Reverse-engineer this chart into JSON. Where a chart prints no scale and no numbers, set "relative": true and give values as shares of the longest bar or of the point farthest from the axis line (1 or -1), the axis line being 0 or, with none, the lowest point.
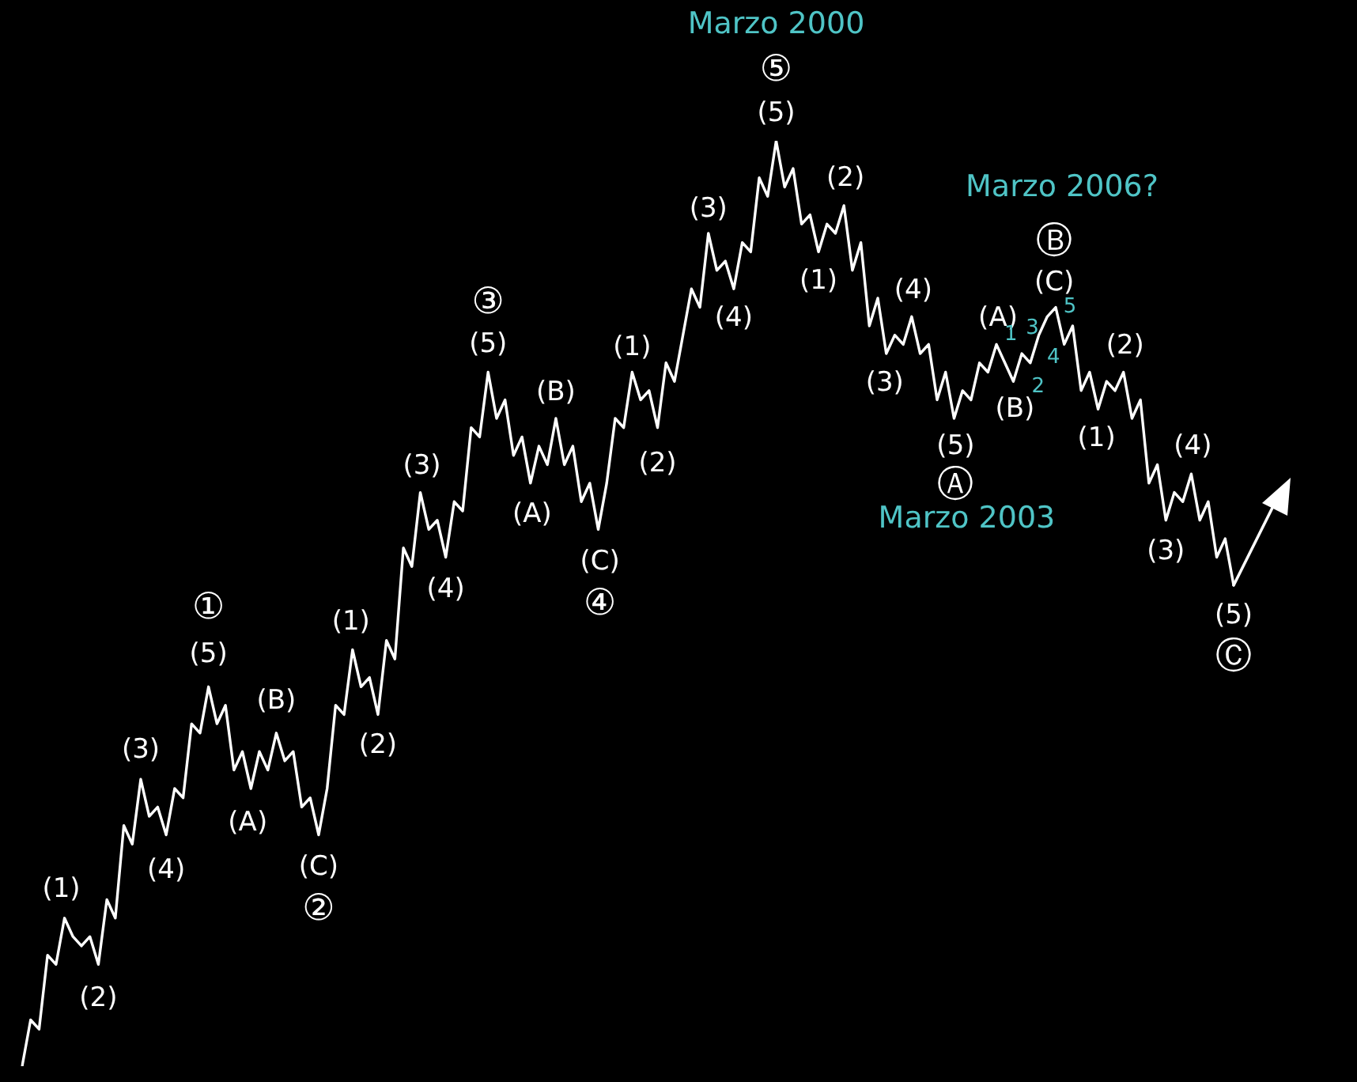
{
  "chart_data": {
    "type": "line",
    "relative": true,
    "tick_labels": false,
    "categories": [
      null,
      null,
      null,
      null,
      null,
      null,
      null,
      null,
      null,
      null,
      null,
      null,
      null,
      null,
      null,
      null,
      null,
      null,
      null,
      null,
      null,
      null,
      null,
      null,
      null,
      null,
      null,
      null,
      null,
      null,
      null,
      null,
      null,
      null,
      null,
      null,
      null,
      null,
      null,
      null,
      null,
      null,
      null,
      null,
      null,
      null,
      null,
      null,
      null,
      null,
      null,
      null,
      null,
      null,
      null,
      null,
      null,
      null,
      null,
      null,
      null,
      null,
      null,
      null,
      null,
      null,
      null,
      null,
      null,
      null,
      null,
      null,
      null,
      null,
      null,
      null,
      null,
      null,
      null,
      null,
      null,
      null,
      null,
      null,
      null,
      null,
      null,
      null,
      null,
      null,
      null,
      null,
      null,
      null,
      null,
      null,
      null,
      null,
      null,
      null,
      null,
      null,
      null,
      null,
      null,
      null,
      null,
      null,
      null,
      null,
      null,
      null,
      null,
      null,
      null,
      null,
      null,
      null,
      null,
      null,
      null,
      null,
      null,
      null,
      null,
      null,
      null,
      null,
      null,
      null,
      null,
      null,
      null,
      null,
      null,
      null,
      null,
      null,
      null,
      null,
      null,
      null,
      null,
      null
    ],
    "series": [
      {
        "color": "#ffffff",
        "values": [
          0,
          0.05,
          0.04,
          0.12,
          0.11,
          0.16,
          0.14,
          0.13,
          0.14,
          0.11,
          0.18,
          0.16,
          0.26,
          0.24,
          0.31,
          0.27,
          0.28,
          0.25,
          0.3,
          0.29,
          0.37,
          0.36,
          0.41,
          0.37,
          0.39,
          0.32,
          0.34,
          0.3,
          0.34,
          0.32,
          0.36,
          0.33,
          0.34,
          0.28,
          0.29,
          0.25,
          0.3,
          0.39,
          0.38,
          0.45,
          0.41,
          0.42,
          0.38,
          0.46,
          0.44,
          0.56,
          0.54,
          0.62,
          0.58,
          0.59,
          0.55,
          0.61,
          0.6,
          0.69,
          0.68,
          0.75,
          0.7,
          0.72,
          0.66,
          0.68,
          0.63,
          0.67,
          0.65,
          0.7,
          0.65,
          0.67,
          0.61,
          0.63,
          0.58,
          0.63,
          0.7,
          0.69,
          0.75,
          0.72,
          0.73,
          0.69,
          0.76,
          0.74,
          0.79,
          0.84,
          0.82,
          0.9,
          0.86,
          0.87,
          0.84,
          0.89,
          0.88,
          0.96,
          0.94,
          1,
          0.95,
          0.97,
          0.91,
          0.92,
          0.88,
          0.91,
          0.9,
          0.93,
          0.86,
          0.89,
          0.8,
          0.83,
          0.77,
          0.79,
          0.78,
          0.81,
          0.77,
          0.78,
          0.72,
          0.75,
          0.7,
          0.73,
          0.72,
          0.76,
          0.75,
          0.78,
          0.76,
          0.74,
          0.77,
          0.76,
          0.79,
          0.81,
          0.82,
          0.78,
          0.8,
          0.73,
          0.75,
          0.71,
          0.74,
          0.73,
          0.75,
          0.7,
          0.72,
          0.63,
          0.65,
          0.59,
          0.62,
          0.61,
          0.64,
          0.59,
          0.61,
          0.55,
          0.57,
          0.52
        ]
      }
    ],
    "annotations": [
      "(1)",
      "(2)",
      "(3)",
      "(4)",
      "(5)",
      "①",
      "(A)",
      "(B)",
      "(C)",
      "②",
      "(1)",
      "(2)",
      "(3)",
      "(4)",
      "(5)",
      "③",
      "(A)",
      "(B)",
      "(C)",
      "④",
      "(1)",
      "(2)",
      "(3)",
      "(4)",
      "(5)",
      "⑤",
      "Marzo 2000",
      "(1)",
      "(2)",
      "(3)",
      "(4)",
      "(5)",
      "Ⓐ",
      "Marzo 2003",
      "(A)",
      "(B)",
      "1",
      "3",
      "5",
      "4",
      "2",
      "(C)",
      "Ⓑ",
      "Marzo 2006?",
      "(1)",
      "(2)",
      "(3)",
      "(4)",
      "(5)",
      "Ⓒ"
    ]
  }
}
